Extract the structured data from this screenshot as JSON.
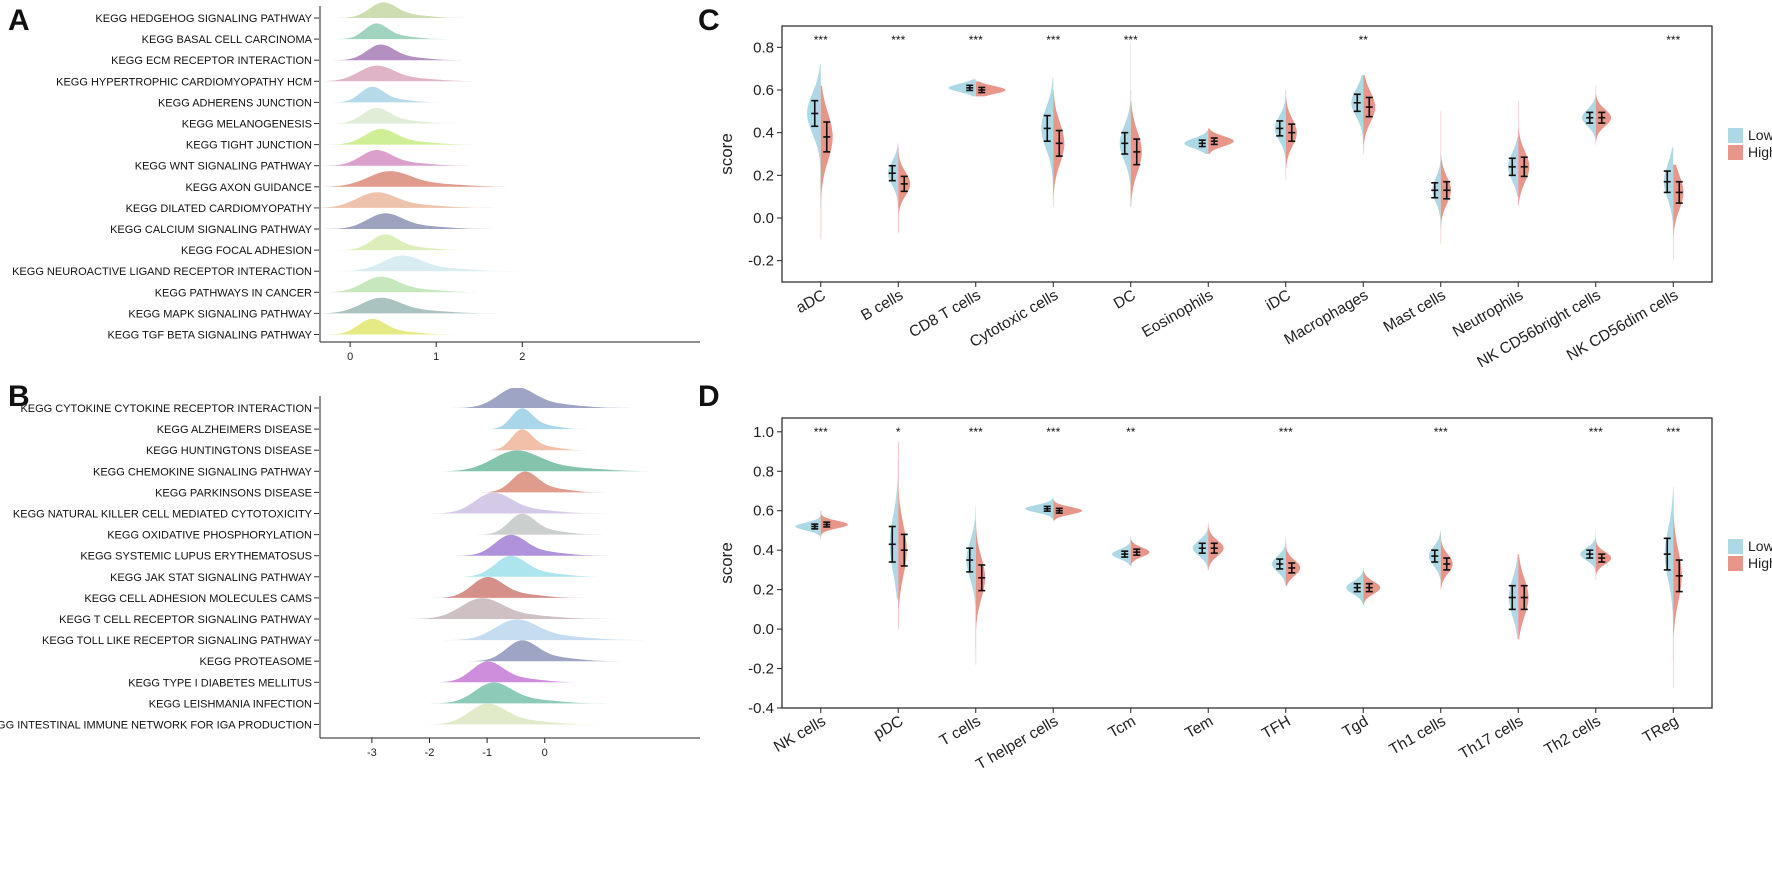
{
  "chart_data": [
    {
      "panel": "A",
      "type": "ridgeline",
      "title": "",
      "xlim": [
        -0.35,
        3.6
      ],
      "xticks": [
        0,
        1,
        2
      ],
      "categories": [
        "KEGG HEDGEHOG SIGNALING PATHWAY",
        "KEGG BASAL CELL CARCINOMA",
        "KEGG ECM RECEPTOR INTERACTION",
        "KEGG HYPERTROPHIC CARDIOMYOPATHY HCM",
        "KEGG ADHERENS JUNCTION",
        "KEGG MELANOGENESIS",
        "KEGG TIGHT JUNCTION",
        "KEGG WNT SIGNALING PATHWAY",
        "KEGG AXON GUIDANCE",
        "KEGG DILATED CARDIOMYOPATHY",
        "KEGG CALCIUM SIGNALING PATHWAY",
        "KEGG FOCAL ADHESION",
        "KEGG NEUROACTIVE LIGAND RECEPTOR INTERACTION",
        "KEGG PATHWAYS IN CANCER",
        "KEGG MAPK SIGNALING PATHWAY",
        "KEGG TGF BETA SIGNALING PATHWAY"
      ],
      "colors": [
        "#c5d8a6",
        "#8fcdb4",
        "#a77bb7",
        "#d9a7bd",
        "#a8d4e6",
        "#dcebd0",
        "#c5ec82",
        "#d68fc4",
        "#d98a78",
        "#eab99f",
        "#8c93b3",
        "#d6ecae",
        "#d2e9f0",
        "#bde3b3",
        "#9bb8b5",
        "#e2e670"
      ],
      "peaks": [
        0.38,
        0.3,
        0.35,
        0.3,
        0.25,
        0.3,
        0.35,
        0.3,
        0.45,
        0.3,
        0.4,
        0.4,
        0.6,
        0.35,
        0.35,
        0.25
      ],
      "spreads": [
        0.35,
        0.3,
        0.35,
        0.45,
        0.3,
        0.35,
        0.4,
        0.4,
        0.55,
        0.5,
        0.45,
        0.35,
        0.5,
        0.45,
        0.5,
        0.35
      ]
    },
    {
      "panel": "B",
      "type": "ridgeline",
      "title": "",
      "xlim": [
        -3.9,
        2.0
      ],
      "xticks": [
        -3,
        -2,
        -1,
        0
      ],
      "categories": [
        "KEGG CYTOKINE CYTOKINE RECEPTOR INTERACTION",
        "KEGG ALZHEIMERS DISEASE",
        "KEGG HUNTINGTONS DISEASE",
        "KEGG CHEMOKINE SIGNALING PATHWAY",
        "KEGG PARKINSONS DISEASE",
        "KEGG NATURAL KILLER CELL MEDIATED CYTOTOXICITY",
        "KEGG OXIDATIVE PHOSPHORYLATION",
        "KEGG SYSTEMIC LUPUS ERYTHEMATOSUS",
        "KEGG JAK STAT SIGNALING PATHWAY",
        "KEGG CELL ADHESION MOLECULES CAMS",
        "KEGG T CELL RECEPTOR SIGNALING PATHWAY",
        "KEGG TOLL LIKE RECEPTOR SIGNALING PATHWAY",
        "KEGG PROTEASOME",
        "KEGG TYPE I DIABETES MELLITUS",
        "KEGG LEISHMANIA INFECTION",
        "KEGG INTESTINAL IMMUNE NETWORK FOR IGA PRODUCTION"
      ],
      "colors": [
        "#8d95ba",
        "#9bcfe6",
        "#f0b59a",
        "#6fba9e",
        "#d98a78",
        "#cdbfe3",
        "#c2c7c6",
        "#a27fd6",
        "#9ee0ea",
        "#cc7d74",
        "#c7b5ba",
        "#bcd6ef",
        "#8d95ba",
        "#c67ad6",
        "#79c1ac",
        "#dce7c0"
      ],
      "peaks": [
        -0.5,
        -0.4,
        -0.4,
        -0.5,
        -0.35,
        -0.9,
        -0.4,
        -0.6,
        -0.6,
        -1.0,
        -1.1,
        -0.5,
        -0.4,
        -1.0,
        -0.9,
        -1.0
      ],
      "spreads": [
        0.7,
        0.4,
        0.4,
        0.9,
        0.5,
        0.7,
        0.5,
        0.6,
        0.6,
        0.6,
        0.8,
        0.8,
        0.6,
        0.6,
        0.7,
        0.7
      ]
    },
    {
      "panel": "C",
      "type": "split-violin",
      "ylabel": "score",
      "ylim": [
        -0.3,
        0.9
      ],
      "yticks": [
        -0.2,
        0.0,
        0.2,
        0.4,
        0.6,
        0.8
      ],
      "ytick_labels": [
        "-0.2",
        "0.0",
        "0.2",
        "0.4",
        "0.6",
        "0.8"
      ],
      "categories": [
        "aDC",
        "B cells",
        "CD8 T cells",
        "Cytotoxic cells",
        "DC",
        "Eosinophils",
        "iDC",
        "Macrophages",
        "Mast cells",
        "Neutrophils",
        "NK CD56bright cells",
        "NK CD56dim cells"
      ],
      "significance": [
        "***",
        "***",
        "***",
        "***",
        "***",
        "",
        "",
        "**",
        "",
        "",
        "",
        "***"
      ],
      "legend": [
        "Low",
        "High"
      ],
      "legend_colors": [
        "#add8e6",
        "#e8958a"
      ],
      "series": [
        {
          "name": "Low",
          "median": [
            0.49,
            0.21,
            0.61,
            0.42,
            0.35,
            0.35,
            0.42,
            0.54,
            0.13,
            0.24,
            0.47,
            0.17
          ],
          "iqr": [
            0.06,
            0.035,
            0.012,
            0.06,
            0.05,
            0.015,
            0.035,
            0.04,
            0.035,
            0.04,
            0.025,
            0.05
          ],
          "range": [
            [
              0.05,
              0.72
            ],
            [
              0.05,
              0.35
            ],
            [
              0.57,
              0.65
            ],
            [
              0.12,
              0.66
            ],
            [
              0.05,
              0.82
            ],
            [
              0.3,
              0.41
            ],
            [
              0.25,
              0.6
            ],
            [
              0.35,
              0.67
            ],
            [
              -0.05,
              0.3
            ],
            [
              0.1,
              0.38
            ],
            [
              0.34,
              0.58
            ],
            [
              -0.05,
              0.33
            ]
          ],
          "width": [
            0.16,
            0.12,
            0.32,
            0.14,
            0.13,
            0.28,
            0.13,
            0.14,
            0.1,
            0.12,
            0.16,
            0.11
          ]
        },
        {
          "name": "High",
          "median": [
            0.38,
            0.16,
            0.6,
            0.35,
            0.31,
            0.36,
            0.4,
            0.52,
            0.13,
            0.24,
            0.47,
            0.12
          ],
          "iqr": [
            0.07,
            0.035,
            0.012,
            0.06,
            0.06,
            0.015,
            0.04,
            0.045,
            0.04,
            0.045,
            0.025,
            0.05
          ],
          "range": [
            [
              -0.1,
              0.62
            ],
            [
              -0.07,
              0.33
            ],
            [
              0.57,
              0.64
            ],
            [
              0.05,
              0.6
            ],
            [
              0.05,
              0.6
            ],
            [
              0.3,
              0.42
            ],
            [
              0.18,
              0.6
            ],
            [
              0.3,
              0.67
            ],
            [
              -0.12,
              0.5
            ],
            [
              0.06,
              0.55
            ],
            [
              0.36,
              0.62
            ],
            [
              -0.2,
              0.25
            ]
          ],
          "width": [
            0.14,
            0.14,
            0.35,
            0.13,
            0.13,
            0.3,
            0.13,
            0.14,
            0.12,
            0.13,
            0.18,
            0.12
          ]
        }
      ]
    },
    {
      "panel": "D",
      "type": "split-violin",
      "ylabel": "score",
      "ylim": [
        -0.4,
        1.07
      ],
      "yticks": [
        -0.4,
        -0.2,
        0.0,
        0.2,
        0.4,
        0.6,
        0.8,
        1.0
      ],
      "ytick_labels": [
        "-0.4",
        "-0.2",
        "0.0",
        "0.2",
        "0.4",
        "0.6",
        "0.8",
        "1.0"
      ],
      "categories": [
        "NK cells",
        "pDC",
        "T cells",
        "T helper cells",
        "Tcm",
        "Tem",
        "TFH",
        "Tgd",
        "Th1 cells",
        "Th17 cells",
        "Th2 cells",
        "TReg"
      ],
      "significance": [
        "***",
        "*",
        "***",
        "***",
        "**",
        "",
        "***",
        "",
        "***",
        "",
        "***",
        "***"
      ],
      "legend": [
        "Low",
        "High"
      ],
      "legend_colors": [
        "#add8e6",
        "#e8958a"
      ],
      "series": [
        {
          "name": "Low",
          "median": [
            0.52,
            0.43,
            0.35,
            0.61,
            0.38,
            0.41,
            0.33,
            0.21,
            0.37,
            0.16,
            0.38,
            0.38
          ],
          "iqr": [
            0.012,
            0.09,
            0.06,
            0.012,
            0.015,
            0.025,
            0.025,
            0.02,
            0.03,
            0.06,
            0.02,
            0.08
          ],
          "range": [
            [
              0.45,
              0.6
            ],
            [
              0.15,
              0.85
            ],
            [
              -0.1,
              0.62
            ],
            [
              0.56,
              0.67
            ],
            [
              0.32,
              0.46
            ],
            [
              0.3,
              0.52
            ],
            [
              0.22,
              0.47
            ],
            [
              0.12,
              0.3
            ],
            [
              0.25,
              0.5
            ],
            [
              -0.05,
              0.38
            ],
            [
              0.28,
              0.5
            ],
            [
              -0.15,
              0.72
            ]
          ],
          "width": [
            0.3,
            0.1,
            0.11,
            0.33,
            0.22,
            0.18,
            0.16,
            0.2,
            0.14,
            0.11,
            0.18,
            0.1
          ]
        },
        {
          "name": "High",
          "median": [
            0.53,
            0.4,
            0.26,
            0.6,
            0.39,
            0.41,
            0.31,
            0.21,
            0.33,
            0.16,
            0.36,
            0.27
          ],
          "iqr": [
            0.012,
            0.08,
            0.065,
            0.012,
            0.015,
            0.025,
            0.025,
            0.02,
            0.03,
            0.06,
            0.02,
            0.08
          ],
          "range": [
            [
              0.47,
              0.6
            ],
            [
              0.0,
              0.95
            ],
            [
              -0.18,
              0.55
            ],
            [
              0.55,
              0.66
            ],
            [
              0.32,
              0.47
            ],
            [
              0.3,
              0.54
            ],
            [
              0.22,
              0.45
            ],
            [
              0.12,
              0.31
            ],
            [
              0.2,
              0.48
            ],
            [
              -0.05,
              0.38
            ],
            [
              0.25,
              0.46
            ],
            [
              -0.3,
              0.7
            ]
          ],
          "width": [
            0.32,
            0.1,
            0.11,
            0.34,
            0.22,
            0.18,
            0.17,
            0.2,
            0.14,
            0.12,
            0.18,
            0.1
          ]
        }
      ]
    }
  ]
}
